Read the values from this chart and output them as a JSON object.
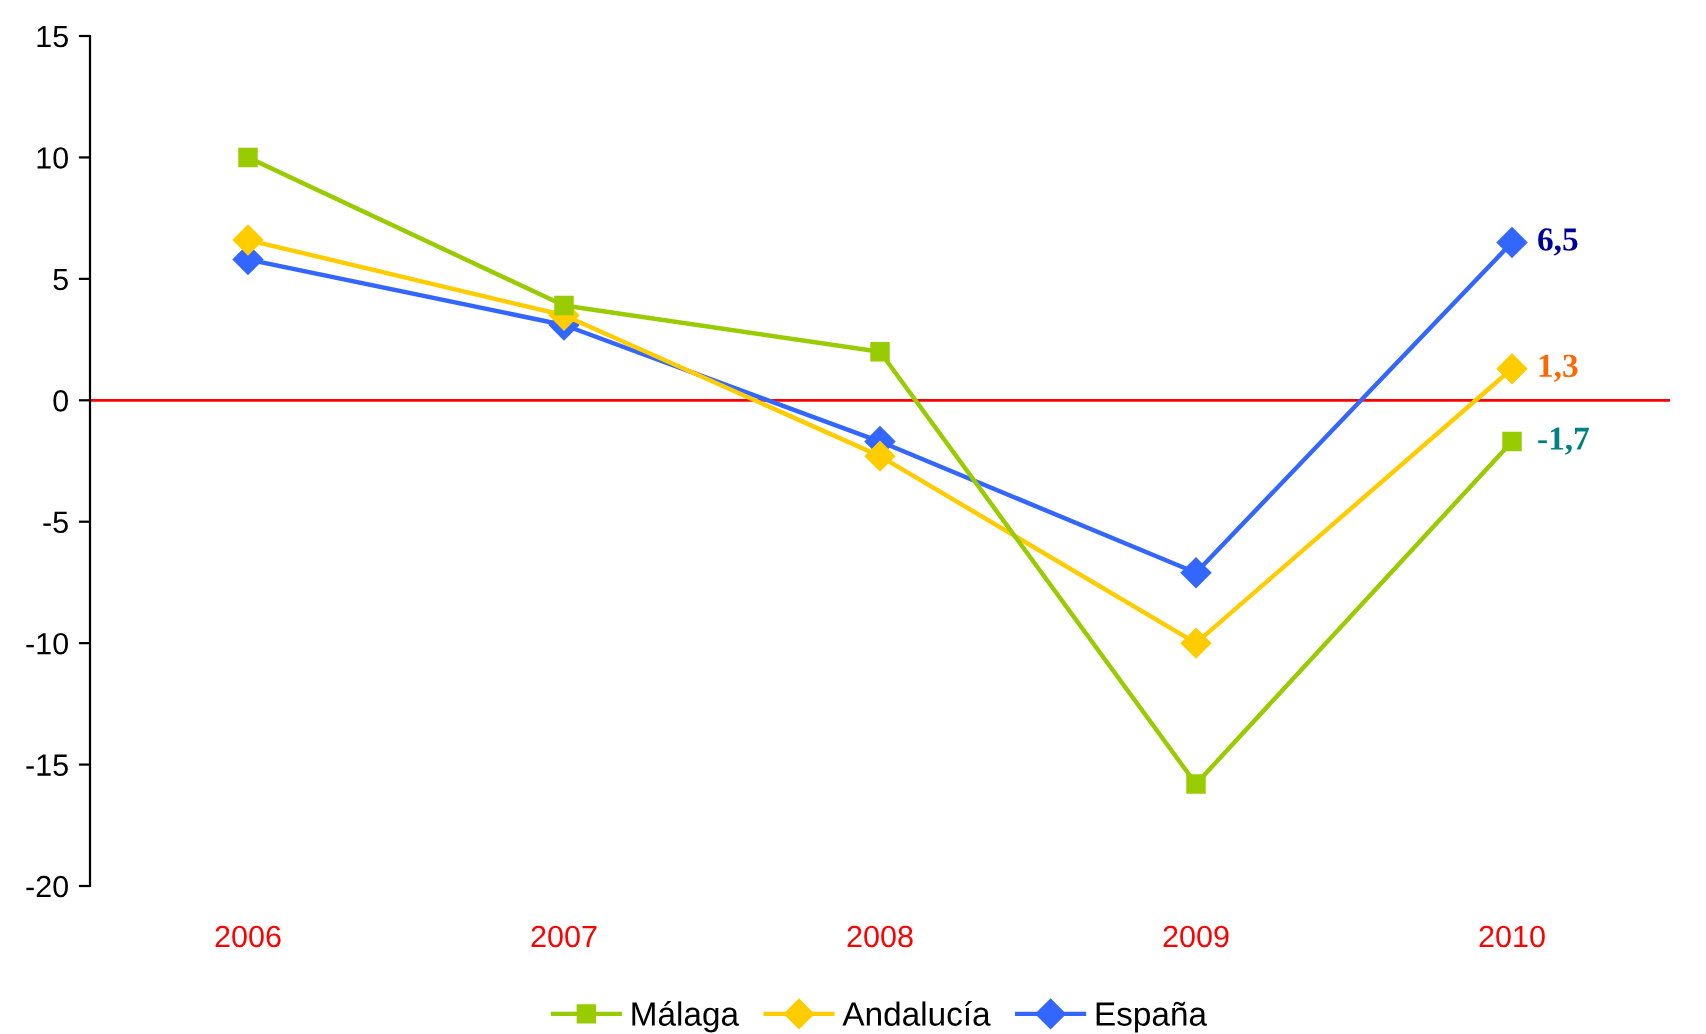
{
  "chart_data": {
    "type": "line",
    "categories": [
      "2006",
      "2007",
      "2008",
      "2009",
      "2010"
    ],
    "series": [
      {
        "name": "Málaga",
        "color": "#99cc00",
        "marker": "square",
        "values": [
          10,
          3.9,
          2.0,
          -15.8,
          -1.7
        ],
        "value_labels": [
          null,
          null,
          null,
          null,
          "-1,7"
        ]
      },
      {
        "name": "Andalucía",
        "color": "#ffcc00",
        "marker": "diamond",
        "values": [
          6.6,
          3.5,
          -2.3,
          -10,
          1.3
        ],
        "value_labels": [
          null,
          null,
          null,
          null,
          "1,3"
        ]
      },
      {
        "name": "España",
        "color": "#3366ff",
        "marker": "diamond",
        "values": [
          5.8,
          3.1,
          -1.7,
          -7.1,
          6.5
        ],
        "value_labels": [
          null,
          null,
          null,
          null,
          "6,5"
        ]
      }
    ],
    "ylim": [
      -20,
      15
    ],
    "yticks": [
      -20,
      -15,
      -10,
      -5,
      0,
      5,
      10,
      15
    ],
    "ref_lines": [
      {
        "axis": "y",
        "value": 0,
        "color": "#ff0000"
      }
    ],
    "grid": false,
    "legend": "bottom"
  }
}
